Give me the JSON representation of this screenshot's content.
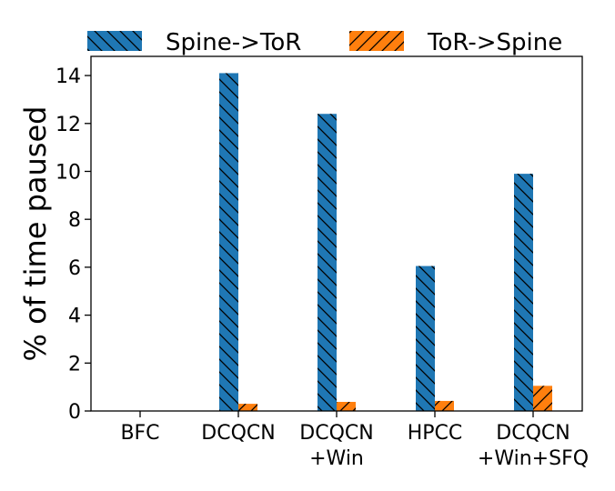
{
  "chart_data": {
    "type": "bar",
    "title": "",
    "xlabel": "",
    "ylabel": "% of time paused",
    "ylim": [
      0,
      14.8
    ],
    "yticks": [
      0,
      2,
      4,
      6,
      8,
      10,
      12,
      14
    ],
    "categories": [
      [
        "BFC"
      ],
      [
        "DCQCN"
      ],
      [
        "DCQCN",
        "+Win"
      ],
      [
        "HPCC"
      ],
      [
        "DCQCN",
        "+Win+SFQ"
      ]
    ],
    "series": [
      {
        "name": "Spine->ToR",
        "color": "#1f77b4",
        "hatch": "backslash",
        "values": [
          0,
          14.1,
          12.4,
          6.05,
          9.9
        ]
      },
      {
        "name": "ToR->Spine",
        "color": "#ff7f0e",
        "hatch": "slash",
        "values": [
          0,
          0.3,
          0.38,
          0.42,
          1.05
        ]
      }
    ],
    "legend": "top",
    "grid": false
  }
}
